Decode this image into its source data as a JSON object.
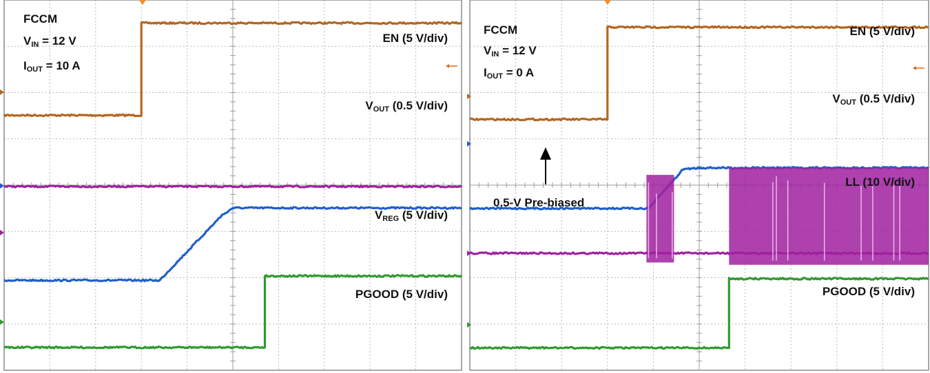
{
  "panels": [
    {
      "settings": {
        "mode": "FCCM",
        "vin": {
          "sym": "V",
          "sub": "IN",
          "rest": " = 12 V"
        },
        "iout": {
          "sym": "I",
          "sub": "OUT",
          "rest": " = 10 A"
        }
      },
      "channel_labels": {
        "en": {
          "sym": "EN (5 V/div)",
          "sub": "",
          "rest": ""
        },
        "vout": {
          "sym": "V",
          "sub": "OUT",
          "rest": " (0.5 V/div)"
        },
        "ch3": {
          "sym": "V",
          "sub": "REG",
          "rest": " (5 V/div)"
        },
        "pgood": {
          "sym": "PGOOD (5 V/div)",
          "sub": "",
          "rest": ""
        }
      },
      "annotation": ""
    },
    {
      "settings": {
        "mode": "FCCM",
        "vin": {
          "sym": "V",
          "sub": "IN",
          "rest": " = 12 V"
        },
        "iout": {
          "sym": "I",
          "sub": "OUT",
          "rest": " = 0 A"
        }
      },
      "channel_labels": {
        "en": {
          "sym": "EN (5 V/div)",
          "sub": "",
          "rest": ""
        },
        "vout": {
          "sym": "V",
          "sub": "OUT",
          "rest": " (0.5 V/div)"
        },
        "ch3": {
          "sym": "LL (10 V/div)",
          "sub": "",
          "rest": ""
        },
        "pgood": {
          "sym": "PGOOD (5 V/div)",
          "sub": "",
          "rest": ""
        }
      },
      "annotation": "0.5-V Pre-biased"
    }
  ],
  "chart_data": [
    {
      "type": "line",
      "grid": {
        "x_divisions": 10,
        "y_divisions": 8
      },
      "series": [
        {
          "key": "en",
          "color": "#b5651d",
          "points": [
            [
              0,
              -0.5
            ],
            [
              3.0,
              -0.5
            ],
            [
              3.0,
              1.5
            ],
            [
              10,
              1.5
            ]
          ]
        },
        {
          "key": "vout",
          "color": "#1f5fc9",
          "points": [
            [
              0,
              -2.05
            ],
            [
              3.4,
              -2.05
            ],
            [
              4.75,
              -0.65
            ],
            [
              5.0,
              -0.48
            ],
            [
              10,
              -0.48
            ]
          ]
        },
        {
          "key": "ch3",
          "color": "#a020a0",
          "points": [
            [
              0,
              1.0
            ],
            [
              10,
              1.0
            ]
          ]
        },
        {
          "key": "pgood",
          "color": "#2e9a2e",
          "points": [
            [
              0,
              -0.55
            ],
            [
              5.7,
              -0.55
            ],
            [
              5.7,
              1.0
            ],
            [
              10,
              1.0
            ]
          ]
        }
      ]
    },
    {
      "type": "line",
      "grid": {
        "x_divisions": 10,
        "y_divisions": 8
      },
      "series": [
        {
          "key": "en",
          "color": "#b5651d",
          "points": [
            [
              0,
              -0.5
            ],
            [
              3.0,
              -0.5
            ],
            [
              3.0,
              1.5
            ],
            [
              10,
              1.5
            ]
          ]
        },
        {
          "key": "vout",
          "color": "#1f5fc9",
          "points": [
            [
              0,
              -1.4
            ],
            [
              3.9,
              -1.4
            ],
            [
              4.65,
              -0.55
            ],
            [
              5.0,
              -0.52
            ],
            [
              10,
              -0.52
            ]
          ]
        },
        {
          "key": "ch3",
          "color": "#a020a0",
          "points": [
            [
              0,
              0.0
            ],
            [
              10,
              0.0
            ]
          ],
          "bursts": [
            [
              3.85,
              4.45,
              1.7,
              -0.2
            ],
            [
              5.65,
              10,
              1.85,
              -0.25
            ]
          ]
        },
        {
          "key": "pgood",
          "color": "#2e9a2e",
          "points": [
            [
              0,
              -0.5
            ],
            [
              5.65,
              -0.5
            ],
            [
              5.65,
              1.0
            ],
            [
              10,
              1.0
            ]
          ]
        }
      ]
    }
  ]
}
